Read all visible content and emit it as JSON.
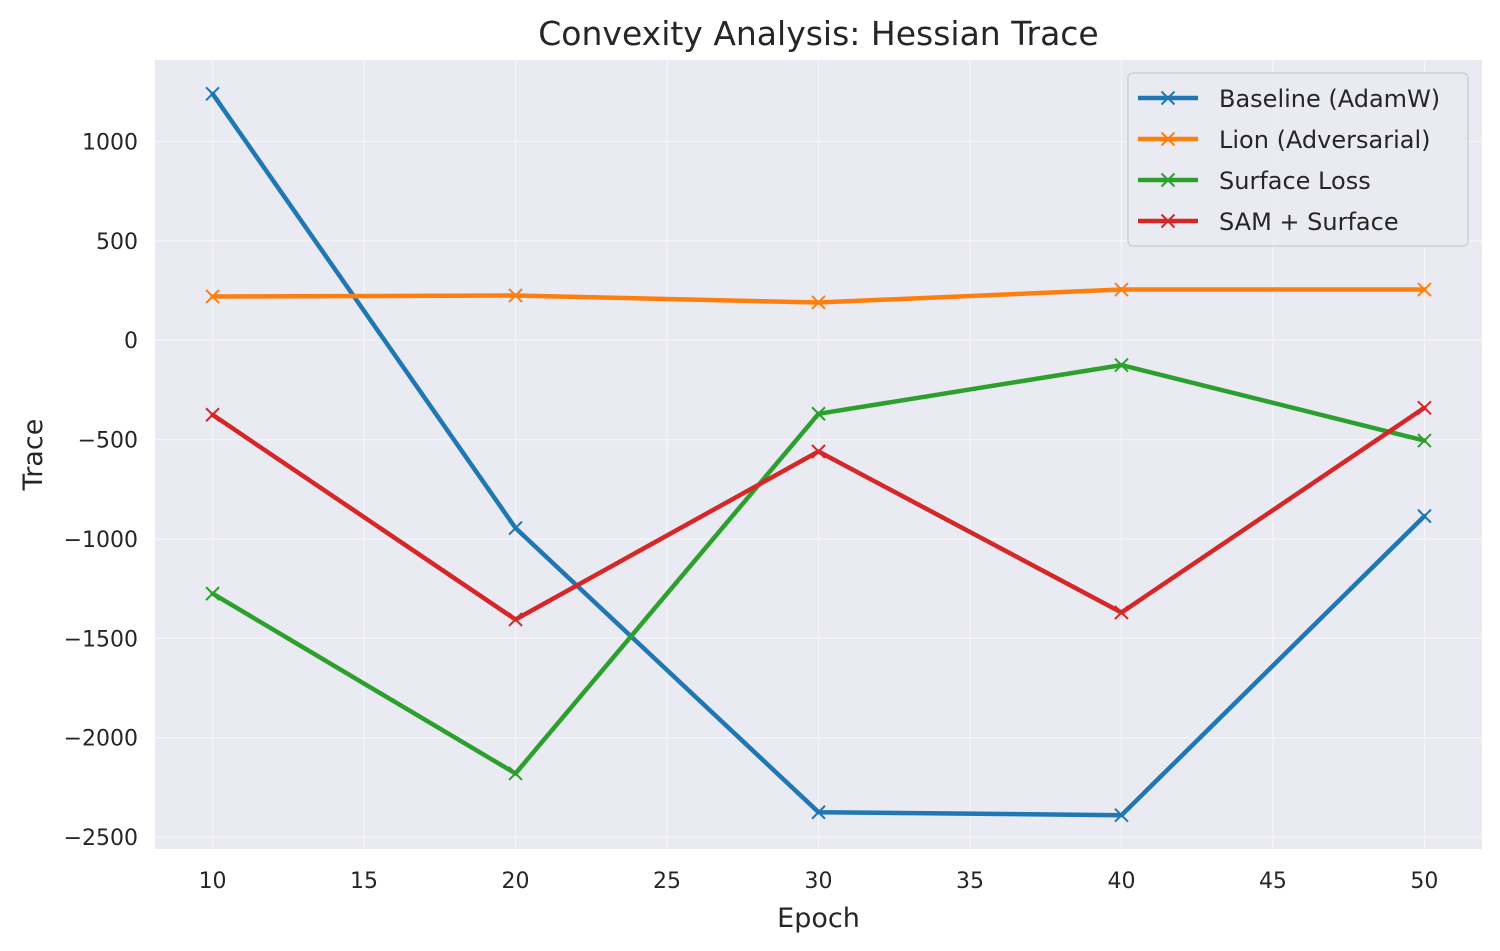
{
  "chart_data": {
    "type": "line",
    "title": "Convexity Analysis: Hessian Trace",
    "xlabel": "Epoch",
    "ylabel": "Trace",
    "x": [
      10,
      20,
      30,
      40,
      50
    ],
    "xlim": [
      8.1,
      51.9
    ],
    "ylim": [
      -2560,
      1410
    ],
    "xticks": [
      10,
      15,
      20,
      25,
      30,
      35,
      40,
      45,
      50
    ],
    "yticks": [
      -2500,
      -2000,
      -1500,
      -1000,
      -500,
      0,
      500,
      1000
    ],
    "xtick_labels": [
      "10",
      "15",
      "20",
      "25",
      "30",
      "35",
      "40",
      "45",
      "50"
    ],
    "ytick_labels": [
      "−2500",
      "−2000",
      "−1500",
      "−1000",
      "−500",
      "0",
      "500",
      "1000"
    ],
    "grid": true,
    "legend_position": "top-right",
    "marker": "x",
    "series": [
      {
        "name": "Baseline (AdamW)",
        "color": "#1f77b4",
        "values": [
          1240,
          -945,
          -2375,
          -2390,
          -885
        ]
      },
      {
        "name": "Lion (Adversarial)",
        "color": "#ff7f0e",
        "values": [
          220,
          225,
          190,
          255,
          255
        ]
      },
      {
        "name": "Surface Loss",
        "color": "#2ca02c",
        "values": [
          -1275,
          -2180,
          -370,
          -125,
          -505
        ]
      },
      {
        "name": "SAM + Surface",
        "color": "#d62728",
        "values": [
          -375,
          -1405,
          -560,
          -1370,
          -340
        ]
      }
    ]
  }
}
